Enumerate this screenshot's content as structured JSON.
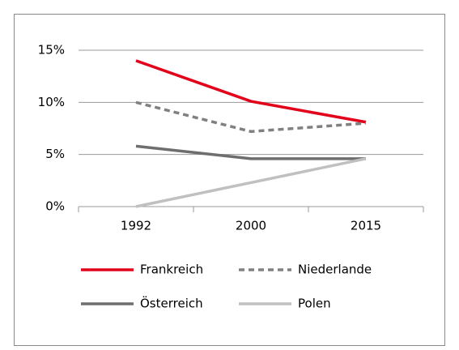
{
  "chart_data": {
    "type": "line",
    "categories": [
      "1992",
      "2000",
      "2015"
    ],
    "series": [
      {
        "name": "Frankreich",
        "color": "#e2001a",
        "line_style": "solid",
        "values": [
          14,
          10.1,
          8.1
        ]
      },
      {
        "name": "Niederlande",
        "color": "#808080",
        "line_style": "dashed",
        "values": [
          10,
          7.2,
          8
        ]
      },
      {
        "name": "Österreich",
        "color": "#6e6e6e",
        "line_style": "solid",
        "values": [
          5.8,
          4.6,
          4.6
        ]
      },
      {
        "name": "Polen",
        "color": "#c0c0c0",
        "line_style": "solid",
        "values": [
          0,
          2.3,
          4.6
        ]
      }
    ],
    "ylim": [
      0,
      15
    ],
    "yticks": [
      {
        "value": 0,
        "label": "0%"
      },
      {
        "value": 5,
        "label": "5%"
      },
      {
        "value": 10,
        "label": "10%"
      },
      {
        "value": 15,
        "label": "15%"
      }
    ],
    "grid": true,
    "legend": "bottom"
  }
}
